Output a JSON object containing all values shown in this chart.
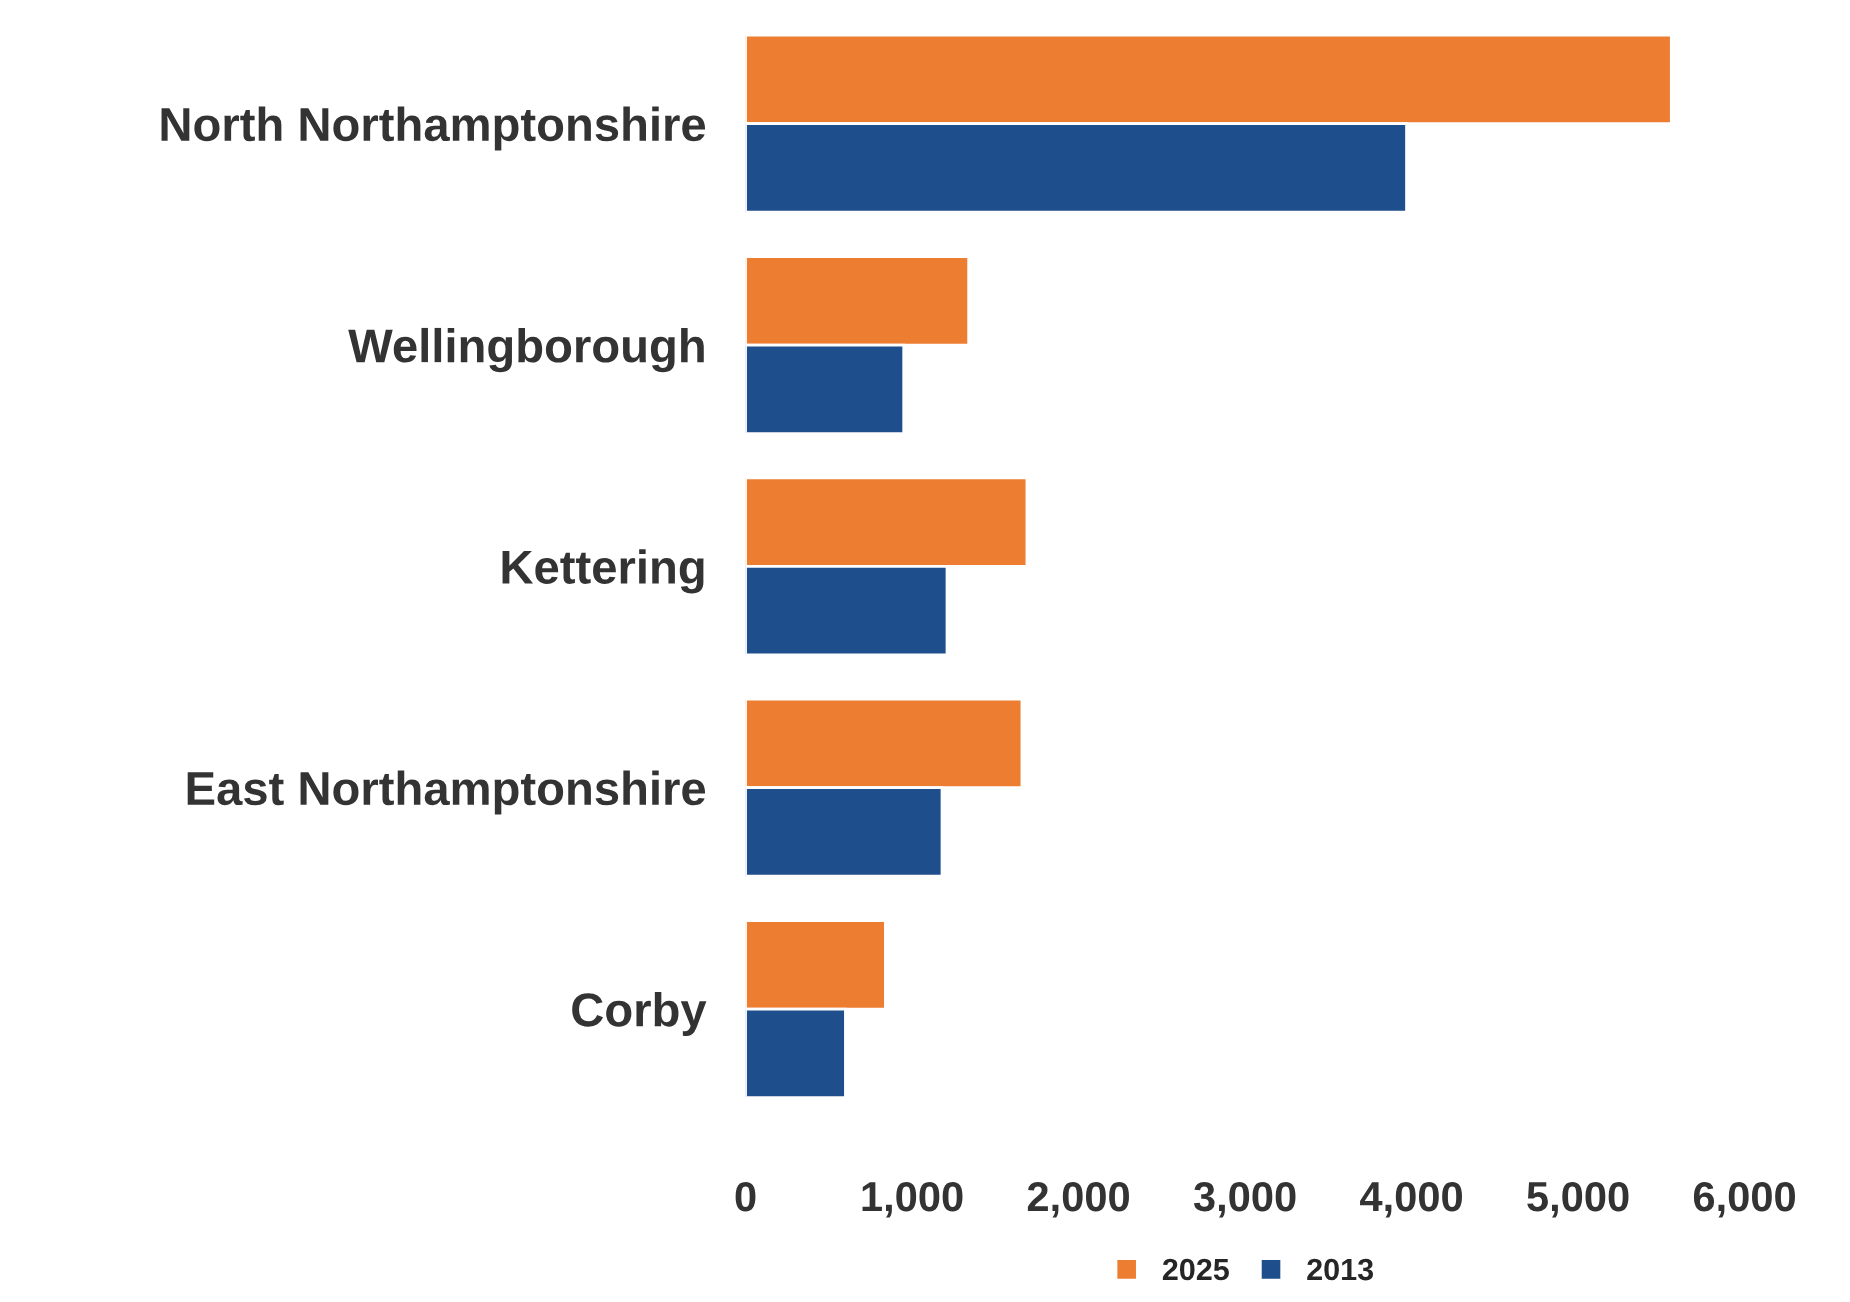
{
  "chart_data": {
    "type": "bar",
    "orientation": "horizontal",
    "categories": [
      "North Northamptonshire",
      "Wellingborough",
      "Kettering",
      "East Northamptonshire",
      "Corby"
    ],
    "series": [
      {
        "name": "2025",
        "color": "#ed7d31",
        "values": [
          5560,
          1340,
          1690,
          1660,
          840
        ]
      },
      {
        "name": "2013",
        "color": "#1f4e8c",
        "values": [
          3970,
          950,
          1210,
          1180,
          600
        ]
      }
    ],
    "xlim": [
      0,
      6000
    ],
    "xticks": [
      {
        "value": 0,
        "label": "0"
      },
      {
        "value": 1000,
        "label": "1,000"
      },
      {
        "value": 2000,
        "label": "2,000"
      },
      {
        "value": 3000,
        "label": "3,000"
      },
      {
        "value": 4000,
        "label": "4,000"
      },
      {
        "value": 5000,
        "label": "5,000"
      },
      {
        "value": 6000,
        "label": "6,000"
      }
    ],
    "legend": "bottom",
    "grid": false
  }
}
